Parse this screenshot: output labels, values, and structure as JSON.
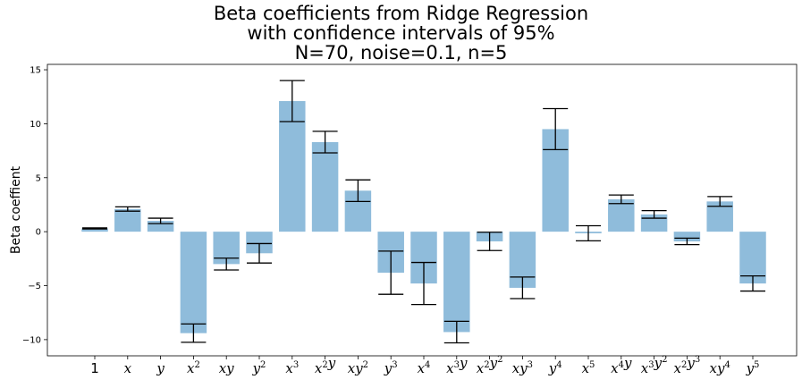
{
  "chart_data": {
    "type": "bar",
    "title": [
      "Beta coefficients from Ridge Regression",
      "with confidence intervals of 95%",
      "N=70, noise=0.1, n=5"
    ],
    "xlabel": "",
    "ylabel": "Beta coeffient",
    "ylim": [
      -11.5,
      15.5
    ],
    "yticks": [
      -10,
      -5,
      0,
      5,
      10,
      15
    ],
    "categories": [
      {
        "base": "1",
        "sup": ""
      },
      {
        "base": "x",
        "sup": ""
      },
      {
        "base": "y",
        "sup": ""
      },
      {
        "base": "x",
        "sup": "2"
      },
      {
        "base": "xy",
        "sup": ""
      },
      {
        "base": "y",
        "sup": "2"
      },
      {
        "base": "x",
        "sup": "3"
      },
      {
        "base": "x",
        "sup": "2",
        "base2": "y",
        "sup2": ""
      },
      {
        "base": "xy",
        "sup": "2"
      },
      {
        "base": "y",
        "sup": "3"
      },
      {
        "base": "x",
        "sup": "4"
      },
      {
        "base": "x",
        "sup": "3",
        "base2": "y",
        "sup2": ""
      },
      {
        "base": "x",
        "sup": "2",
        "base2": "y",
        "sup2": "2"
      },
      {
        "base": "xy",
        "sup": "3"
      },
      {
        "base": "y",
        "sup": "4"
      },
      {
        "base": "x",
        "sup": "5"
      },
      {
        "base": "x",
        "sup": "4",
        "base2": "y",
        "sup2": ""
      },
      {
        "base": "x",
        "sup": "3",
        "base2": "y",
        "sup2": "2"
      },
      {
        "base": "x",
        "sup": "2",
        "base2": "y",
        "sup2": "3"
      },
      {
        "base": "xy",
        "sup": "4"
      },
      {
        "base": "y",
        "sup": "5"
      }
    ],
    "values": [
      0.3,
      2.1,
      1.0,
      -9.4,
      -3.0,
      -2.0,
      12.1,
      8.3,
      3.8,
      -3.8,
      -4.8,
      -9.3,
      -0.9,
      -5.2,
      9.5,
      -0.15,
      3.0,
      1.6,
      -0.9,
      2.8,
      -4.8
    ],
    "errors": [
      0.05,
      0.2,
      0.25,
      0.85,
      0.55,
      0.9,
      1.9,
      1.0,
      1.0,
      2.0,
      1.95,
      1.0,
      0.85,
      1.0,
      1.9,
      0.7,
      0.4,
      0.35,
      0.3,
      0.45,
      0.7
    ],
    "bar_color": "#8fbcdb",
    "error_color": "#000000",
    "grid": false,
    "legend": "none"
  }
}
